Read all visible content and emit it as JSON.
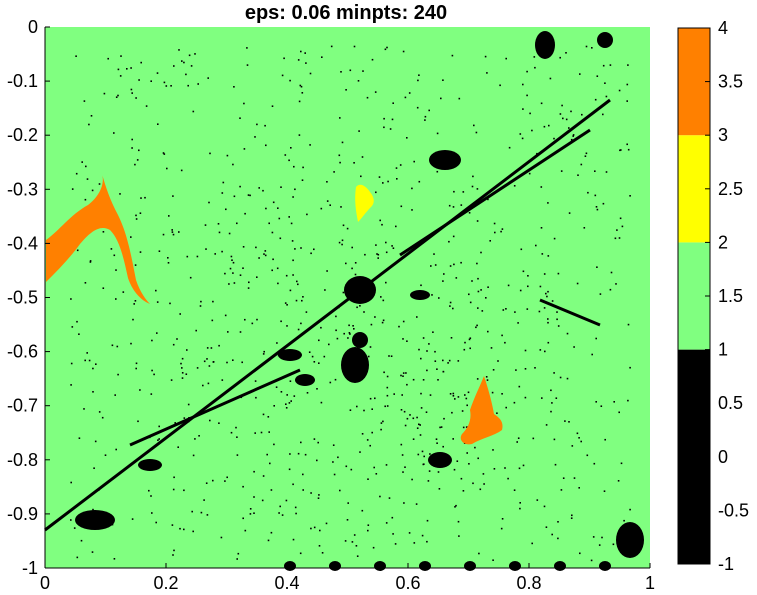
{
  "chart_data": {
    "type": "heatmap",
    "title": "eps: 0.06 minpts: 240",
    "xlabel": "",
    "ylabel": "",
    "xlim": [
      0,
      1
    ],
    "ylim": [
      -1,
      0
    ],
    "x_ticks": [
      "0",
      "0.2",
      "0.4",
      "0.6",
      "0.8",
      "1"
    ],
    "y_ticks": [
      "0",
      "-0.1",
      "-0.2",
      "-0.3",
      "-0.4",
      "-0.5",
      "-0.6",
      "-0.7",
      "-0.8",
      "-0.9",
      "-1"
    ],
    "grid": false,
    "colorbar": {
      "range": [
        -1,
        4
      ],
      "ticks": [
        "4",
        "3.5",
        "3",
        "2.5",
        "2",
        "1.5",
        "1",
        "0.5",
        "0",
        "-0.5",
        "-1"
      ],
      "bands": [
        {
          "from": -1,
          "to": 1,
          "color": "#000000"
        },
        {
          "from": 1,
          "to": 2,
          "color": "#80ff80"
        },
        {
          "from": 2,
          "to": 3,
          "color": "#ffff00"
        },
        {
          "from": 3,
          "to": 4,
          "color": "#ff8000"
        }
      ]
    },
    "clusters": [
      {
        "label": -1,
        "color": "#000000"
      },
      {
        "label": 1,
        "color": "#80ff80"
      },
      {
        "label": 2,
        "color": "#ffff00"
      },
      {
        "label": 3,
        "color": "#ff8000"
      }
    ],
    "background_cluster": 1
  }
}
